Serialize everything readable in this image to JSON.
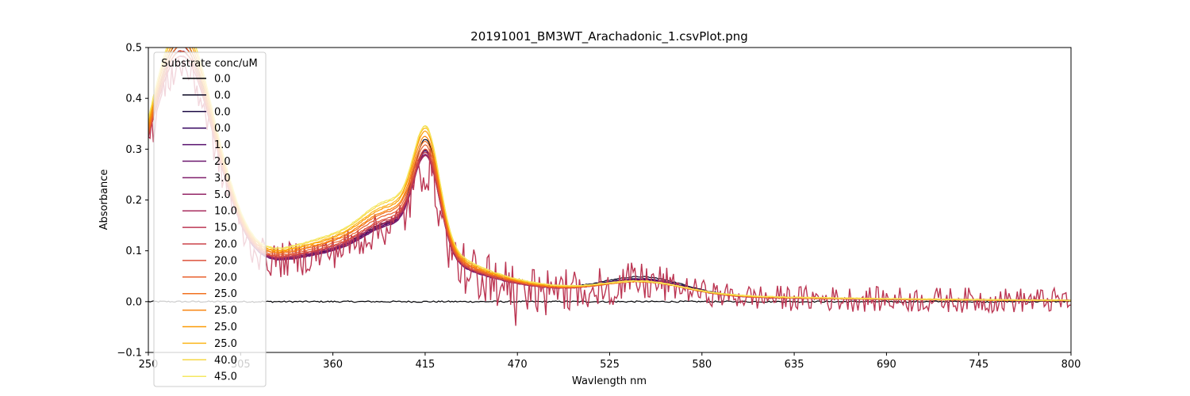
{
  "chart_data": {
    "type": "line",
    "title": "20191001_BM3WT_Arachadonic_1.csvPlot.png",
    "xlabel": "Wavlength nm",
    "ylabel": "Absorbance",
    "xlim": [
      250,
      800
    ],
    "ylim": [
      -0.1,
      0.5
    ],
    "xticks": [
      250,
      305,
      360,
      415,
      470,
      525,
      580,
      635,
      690,
      745,
      800
    ],
    "yticks": [
      -0.1,
      0.0,
      0.1,
      0.2,
      0.3,
      0.4,
      0.5
    ],
    "ytick_labels": [
      "−0.1",
      "0.0",
      "0.1",
      "0.2",
      "0.3",
      "0.4",
      "0.5"
    ],
    "grid": false,
    "legend": {
      "title": "Substrate conc/uM",
      "placement": "upper-left"
    },
    "series": [
      {
        "name": "0.0",
        "color": "#000004",
        "baseline": true
      },
      {
        "name": "0.0",
        "color": "#0a0722",
        "peak": 0.252,
        "plateau": 0.09,
        "tail": 0.03,
        "bump": 0.034,
        "uv": 0.47
      },
      {
        "name": "0.0",
        "color": "#1e0c45",
        "peak": 0.232,
        "plateau": 0.088,
        "tail": 0.03,
        "bump": 0.03,
        "uv": 0.46
      },
      {
        "name": "0.0",
        "color": "#380962",
        "peak": 0.228,
        "plateau": 0.086,
        "tail": 0.029,
        "bump": 0.03,
        "uv": 0.45
      },
      {
        "name": "1.0",
        "color": "#57106e",
        "peak": 0.23,
        "plateau": 0.088,
        "tail": 0.029,
        "bump": 0.029,
        "uv": 0.46
      },
      {
        "name": "2.0",
        "color": "#6a176e",
        "peak": 0.225,
        "plateau": 0.086,
        "tail": 0.028,
        "bump": 0.028,
        "uv": 0.45
      },
      {
        "name": "3.0",
        "color": "#7f1e6c",
        "peak": 0.224,
        "plateau": 0.087,
        "tail": 0.028,
        "bump": 0.028,
        "uv": 0.45
      },
      {
        "name": "5.0",
        "color": "#932667",
        "peak": 0.222,
        "plateau": 0.09,
        "tail": 0.028,
        "bump": 0.027,
        "uv": 0.44
      },
      {
        "name": "10.0",
        "color": "#a82e5f",
        "peak": 0.22,
        "plateau": 0.092,
        "tail": 0.028,
        "bump": 0.026,
        "uv": 0.44
      },
      {
        "name": "15.0",
        "color": "#bc3754",
        "peak": 0.205,
        "plateau": 0.085,
        "tail": 0.026,
        "bump": 0.024,
        "uv": 0.42,
        "noisy": true
      },
      {
        "name": "20.0",
        "color": "#cc4248",
        "peak": 0.226,
        "plateau": 0.094,
        "tail": 0.028,
        "bump": 0.026,
        "uv": 0.44
      },
      {
        "name": "20.0",
        "color": "#dd513a",
        "peak": 0.23,
        "plateau": 0.096,
        "tail": 0.029,
        "bump": 0.025,
        "uv": 0.45
      },
      {
        "name": "20.0",
        "color": "#e8602d",
        "peak": 0.236,
        "plateau": 0.1,
        "tail": 0.03,
        "bump": 0.025,
        "uv": 0.45
      },
      {
        "name": "25.0",
        "color": "#f1711f",
        "peak": 0.242,
        "plateau": 0.104,
        "tail": 0.03,
        "bump": 0.024,
        "uv": 0.46
      },
      {
        "name": "25.0",
        "color": "#f8850f",
        "peak": 0.25,
        "plateau": 0.106,
        "tail": 0.031,
        "bump": 0.024,
        "uv": 0.47
      },
      {
        "name": "25.0",
        "color": "#fb9b06",
        "peak": 0.258,
        "plateau": 0.11,
        "tail": 0.032,
        "bump": 0.024,
        "uv": 0.48
      },
      {
        "name": "25.0",
        "color": "#fbb61a",
        "peak": 0.262,
        "plateau": 0.112,
        "tail": 0.033,
        "bump": 0.024,
        "uv": 0.49
      },
      {
        "name": "40.0",
        "color": "#f6d746",
        "peak": 0.264,
        "plateau": 0.116,
        "tail": 0.034,
        "bump": 0.024,
        "uv": 0.5
      },
      {
        "name": "45.0",
        "color": "#f5e861",
        "peak": 0.262,
        "plateau": 0.118,
        "tail": 0.034,
        "bump": 0.023,
        "uv": 0.5
      }
    ]
  }
}
